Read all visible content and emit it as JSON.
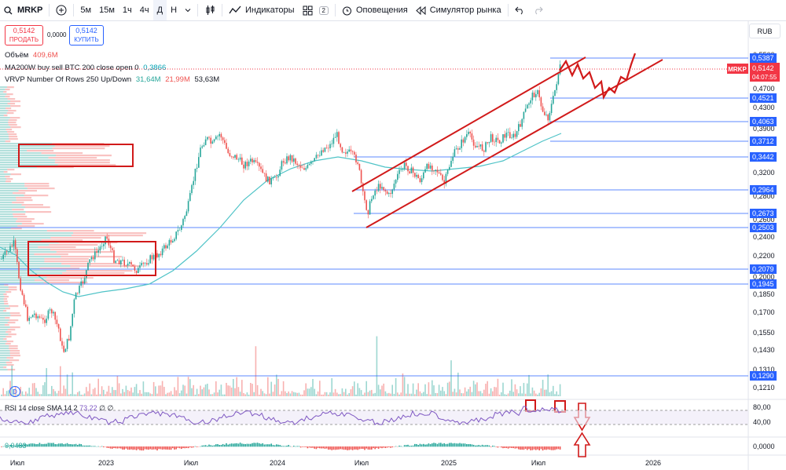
{
  "toolbar": {
    "symbol": "MRKP",
    "intervals": [
      "5м",
      "15м",
      "1ч",
      "4ч",
      "Д",
      "Н"
    ],
    "indicators": "Индикаторы",
    "layout_count": "2",
    "alerts": "Оповещения",
    "replay": "Симулятор рынка"
  },
  "trade": {
    "sell_price": "0,5142",
    "sell_label": "ПРОДАТЬ",
    "spread": "0,0000",
    "buy_price": "0,5142",
    "buy_label": "КУПИТЬ"
  },
  "legend": {
    "volume_label": "Объём",
    "volume_value": "409,6M",
    "ma_label": "MA200W buy sell BTC 200 close open 0",
    "ma_value": "0,3866",
    "vrvp_label": "VRVP Number Of Rows 250 Up/Down",
    "vrvp_up": "31,64M",
    "vrvp_down": "21,99M",
    "vrvp_total": "53,63M"
  },
  "currency": "RUB",
  "price_axis": {
    "ticks": [
      "0,5500",
      "0,4700",
      "0,4300",
      "0,3900",
      "0,3200",
      "0,2800",
      "0,2600",
      "0,2400",
      "0,2200",
      "0,2000",
      "0,1850",
      "0,1700",
      "0,1550",
      "0,1430",
      "0,1310",
      "0,1210"
    ],
    "levels": [
      "0,5387",
      "0,4521",
      "0,4063",
      "0,3712",
      "0,3442",
      "0,2964",
      "0,2673",
      "0,2503",
      "0,2079",
      "0,1945",
      "0,1290"
    ],
    "last_symbol": "MRKP",
    "last_price": "0,5142",
    "countdown": "04:07:55"
  },
  "rsi": {
    "label": "RSI 14 close SMA 14 2",
    "value": "73,22",
    "na1": "∅",
    "na2": "∅",
    "ticks": [
      "80,00",
      "40,00"
    ]
  },
  "macd": {
    "value": "0,0483",
    "tick": "0,0000"
  },
  "time_axis": [
    "Июл",
    "2023",
    "Июл",
    "2024",
    "Июл",
    "2025",
    "Июл",
    "2026"
  ],
  "colors": {
    "up": "#26a69a",
    "down": "#ef5350",
    "ma": "#4fc3c7",
    "level": "#2962ff",
    "annotation": "#d11a1a",
    "rsi": "#7e57c2"
  }
}
